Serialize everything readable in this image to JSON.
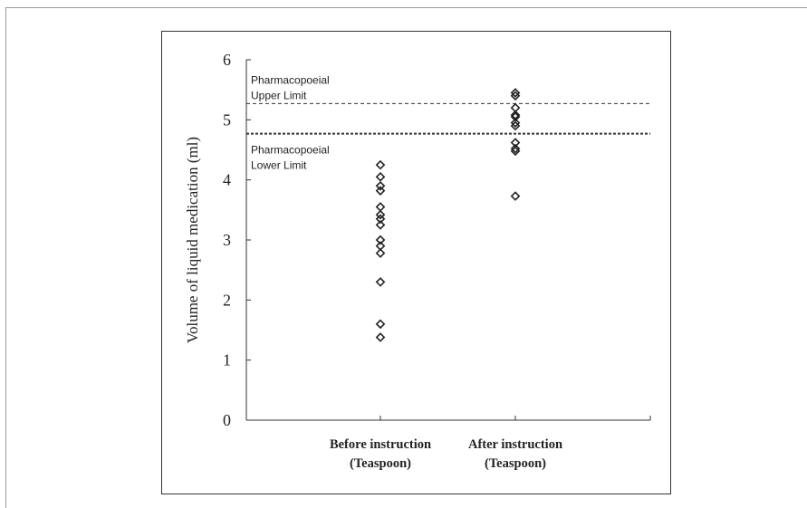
{
  "chart_data": {
    "type": "scatter",
    "title": "",
    "xlabel": "",
    "ylabel": "Volume of liquid medication (ml)",
    "ylim": [
      0,
      6
    ],
    "yticks": [
      "0",
      "1",
      "2",
      "3",
      "4",
      "5",
      "6"
    ],
    "grid": false,
    "categories": [
      [
        "Before instruction",
        "(Teaspoon)"
      ],
      [
        "After instruction",
        "(Teaspoon)"
      ]
    ],
    "series": [
      {
        "category_index": 0,
        "marker": "diamond",
        "values": [
          4.25,
          4.05,
          3.9,
          3.82,
          3.55,
          3.42,
          3.35,
          3.25,
          3.0,
          2.9,
          2.78,
          2.3,
          1.6,
          1.38
        ]
      },
      {
        "category_index": 1,
        "marker": "diamond",
        "values": [
          5.45,
          5.4,
          5.2,
          5.08,
          5.05,
          4.95,
          4.9,
          4.62,
          4.52,
          4.48,
          3.73
        ]
      }
    ],
    "reference_lines": [
      {
        "value": 5.27,
        "style": "dashed",
        "label": [
          "Pharmacopoeial",
          "Upper Limit"
        ],
        "label_position": "above"
      },
      {
        "value": 4.77,
        "style": "dotted-bold",
        "label": [
          "Pharmacopoeial",
          "Lower Limit"
        ],
        "label_position": "below"
      }
    ],
    "colors": {
      "axis": "#333333",
      "marker": "#222222",
      "text": "#222222"
    }
  }
}
